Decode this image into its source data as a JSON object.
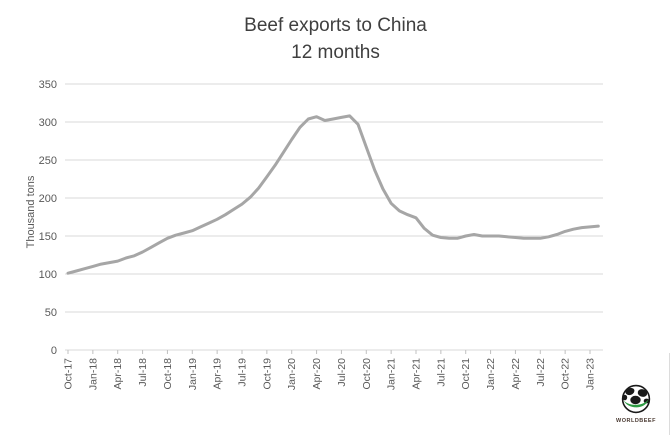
{
  "chart": {
    "title": "Beef exports to China",
    "subtitle": "12 months",
    "y_axis_label": "Thousand tons"
  },
  "chart_data": {
    "type": "line",
    "title": "Beef exports to China",
    "subtitle": "12 months",
    "xlabel": "",
    "ylabel": "Thousand tons",
    "ylim": [
      0,
      350
    ],
    "yticks": [
      0,
      50,
      100,
      150,
      200,
      250,
      300,
      350
    ],
    "x_tick_labels": [
      "Oct-17",
      "Jan-18",
      "Apr-18",
      "Jul-18",
      "Oct-18",
      "Jan-19",
      "Apr-19",
      "Jul-19",
      "Oct-19",
      "Jan-20",
      "Apr-20",
      "Jul-20",
      "Oct-20",
      "Jan-21",
      "Apr-21",
      "Jul-21",
      "Oct-21",
      "Jan-22",
      "Apr-22",
      "Jul-22",
      "Oct-22",
      "Jan-23"
    ],
    "x_start": "Oct-17",
    "x_step_months": 1,
    "months_per_labeled_tick": 3,
    "grid": "horizontal",
    "legend": "none",
    "values": [
      101,
      104,
      107,
      110,
      113,
      115,
      117,
      121,
      124,
      129,
      135,
      141,
      147,
      151,
      154,
      157,
      162,
      167,
      172,
      178,
      185,
      192,
      201,
      213,
      228,
      243,
      260,
      277,
      293,
      304,
      307,
      302,
      304,
      306,
      308,
      297,
      267,
      237,
      212,
      193,
      183,
      178,
      174,
      160,
      151,
      148,
      147,
      147,
      150,
      152,
      150,
      150,
      150,
      149,
      148,
      147,
      147,
      147,
      149,
      152,
      156,
      159,
      161,
      162,
      163
    ]
  },
  "branding": {
    "logo_text": "WORLDBEEF"
  },
  "colors": {
    "line": "#a6a6a6",
    "grid": "#d9d9d9",
    "tick_mark": "#c0c0c0",
    "title_text": "#3f3f3f",
    "axis_text": "#595959",
    "logo_green": "#2e9c44",
    "logo_dark": "#1a1a1a"
  }
}
